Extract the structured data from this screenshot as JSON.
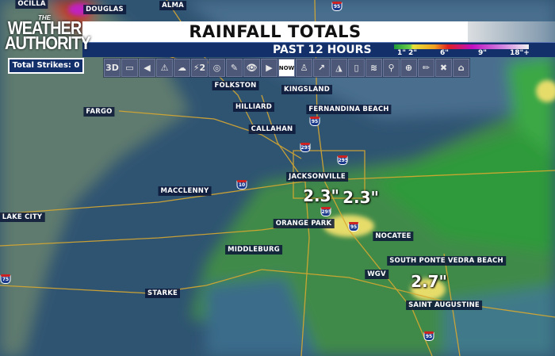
{
  "header": {
    "title": "RAINFALL TOTALS",
    "subtitle": "PAST 12 HOURS"
  },
  "logo": {
    "line1": "THE",
    "line2": "WEATHER",
    "line3": "AUTHORITY"
  },
  "legend": {
    "labels": [
      "1\"",
      "2\"",
      "6\"",
      "9\"",
      "18\"+"
    ],
    "colors": [
      "#1e9a3a",
      "#6cd04a",
      "#e8e23a",
      "#e02020",
      "#c010c0",
      "#f0f0f0"
    ]
  },
  "strikes": {
    "label": "Total Strikes: 0"
  },
  "toolbar": [
    {
      "icon": "3d-icon",
      "label": "3D"
    },
    {
      "icon": "monitor-icon",
      "label": "▭"
    },
    {
      "icon": "camera-icon",
      "label": "◀"
    },
    {
      "icon": "warning-icon",
      "label": "⚠"
    },
    {
      "icon": "storm-cloud-icon",
      "label": "☁"
    },
    {
      "icon": "lightning-2-icon",
      "label": "⚡2"
    },
    {
      "icon": "rings-icon",
      "label": "◎"
    },
    {
      "icon": "eyedropper-icon",
      "label": "✎"
    },
    {
      "icon": "eye-icon",
      "label": "👁"
    },
    {
      "icon": "play-icon",
      "label": "▶"
    },
    {
      "icon": "now-button",
      "label": "NOW"
    },
    {
      "icon": "tower-icon",
      "label": "♙"
    },
    {
      "icon": "arrows-icon",
      "label": "↗"
    },
    {
      "icon": "pizza-slice-icon",
      "label": "◮"
    },
    {
      "icon": "door-icon",
      "label": "▯"
    },
    {
      "icon": "toa-icon",
      "label": "≋"
    },
    {
      "icon": "map-pin-icon",
      "label": "⚲"
    },
    {
      "icon": "zoom-in-icon",
      "label": "⊕"
    },
    {
      "icon": "pencil-icon",
      "label": "✏"
    },
    {
      "icon": "close-icon",
      "label": "✖"
    },
    {
      "icon": "home-icon",
      "label": "⌂"
    }
  ],
  "places": [
    "OCILLA",
    "DOUGLAS",
    "ALMA",
    "FOLKSTON",
    "KINGSLAND",
    "HILLIARD",
    "FERNANDINA BEACH",
    "FARGO",
    "CALLAHAN",
    "JACKSONVILLE",
    "MACCLENNY",
    "LAKE CITY",
    "ORANGE PARK",
    "NOCATEE",
    "MIDDLEBURG",
    "SOUTH PONTE VEDRA BEACH",
    "WGV",
    "STARKE",
    "SAINT AUGUSTINE"
  ],
  "totals": [
    "2.3\"",
    "2.3\"",
    "2.7\""
  ],
  "interstates": [
    "95",
    "95",
    "295",
    "295",
    "10",
    "295",
    "95",
    "75",
    "95"
  ]
}
